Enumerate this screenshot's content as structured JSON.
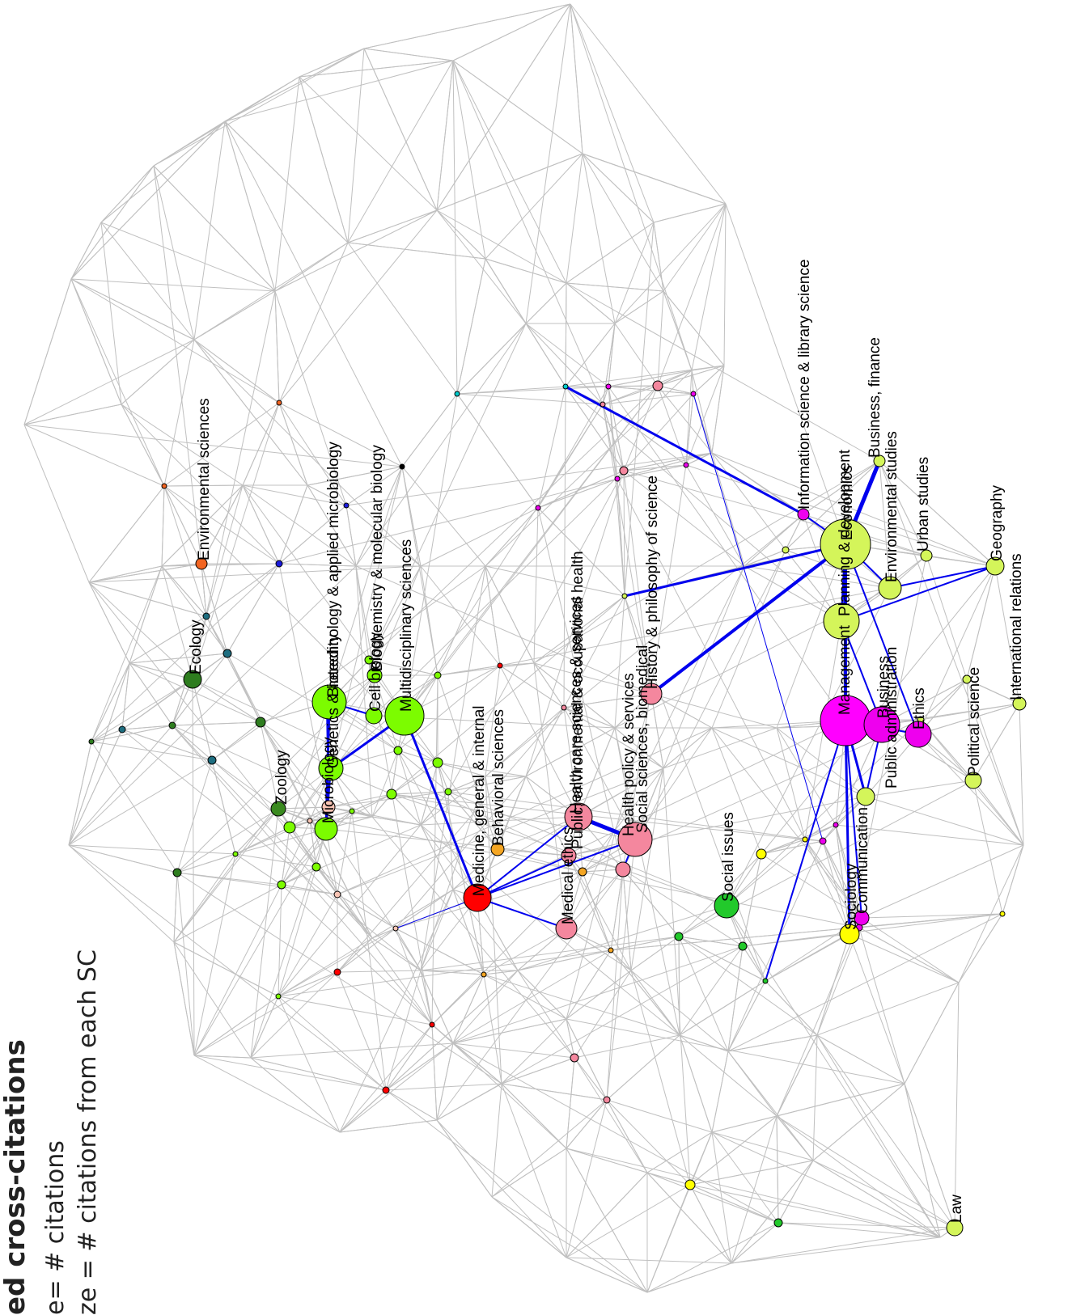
{
  "caption": {
    "title": "ed cross-citations",
    "line1": "e= # citations",
    "line2": "ze = # citations from each SC"
  },
  "colors": {
    "background_edge": "#c0c0c0",
    "highlight_edge": "#0000ee",
    "node_stroke": "#000000"
  },
  "labeled_nodes": [
    {
      "id": "environmental-sciences",
      "label": "Environmental sciences",
      "color": "#f26522"
    },
    {
      "id": "ecology",
      "label": "Ecology",
      "color": "#2e7d1f"
    },
    {
      "id": "zoology",
      "label": "Zoology",
      "color": "#3a8a1f"
    },
    {
      "id": "microbiology",
      "label": "Microbiology",
      "color": "#7cfc00"
    },
    {
      "id": "biotechnology",
      "label": "Biotechnology & applied microbiology",
      "color": "#7cfc00"
    },
    {
      "id": "genetics-heredity",
      "label": "Genetics & heredity",
      "color": "#7cfc00"
    },
    {
      "id": "cell-biology",
      "label": "Cell biology",
      "color": "#7cfc00"
    },
    {
      "id": "biochemistry",
      "label": "Biochemistry & molecular biology",
      "color": "#7cfc00"
    },
    {
      "id": "multidisciplinary-sciences",
      "label": "Multidisciplinary sciences",
      "color": "#7cfc00"
    },
    {
      "id": "medicine-general",
      "label": "Medicine, general & internal",
      "color": "#ff0000"
    },
    {
      "id": "behavioral-sciences",
      "label": "Behavioral sciences",
      "color": "#f5a623"
    },
    {
      "id": "medical-ethics",
      "label": "Medical ethics",
      "color": "#f4879e"
    },
    {
      "id": "health-care",
      "label": "Health care sciences & services",
      "color": "#f4879e"
    },
    {
      "id": "public-health",
      "label": "Public, environmental & occupational health",
      "color": "#f4879e"
    },
    {
      "id": "health-policy",
      "label": "Health policy & services",
      "color": "#f4879e"
    },
    {
      "id": "social-sciences-biomedical",
      "label": "Social sciences, biomedical",
      "color": "#f4879e"
    },
    {
      "id": "history-philosophy",
      "label": "History & philosophy of science",
      "color": "#f4879e"
    },
    {
      "id": "social-issues",
      "label": "Social issues",
      "color": "#22c92b"
    },
    {
      "id": "information-science",
      "label": "Information science & library science",
      "color": "#ee00ee"
    },
    {
      "id": "economics",
      "label": "Economics",
      "color": "#d4f55a"
    },
    {
      "id": "planning-development",
      "label": "Planning & development",
      "color": "#d4f55a"
    },
    {
      "id": "business-finance",
      "label": "Business, finance",
      "color": "#d4f55a"
    },
    {
      "id": "environmental-studies",
      "label": "Environmental studies",
      "color": "#d4f55a"
    },
    {
      "id": "urban-studies",
      "label": "Urban studies",
      "color": "#d4f55a"
    },
    {
      "id": "geography",
      "label": "Geography",
      "color": "#d4f55a"
    },
    {
      "id": "international-relations",
      "label": "International relations",
      "color": "#d4f55a"
    },
    {
      "id": "management",
      "label": "Management",
      "color": "#ff00ff"
    },
    {
      "id": "business",
      "label": "Business",
      "color": "#ee00ee"
    },
    {
      "id": "public-administration",
      "label": "Public administration",
      "color": "#d4f55a"
    },
    {
      "id": "ethics",
      "label": "Ethics",
      "color": "#ee00ee"
    },
    {
      "id": "political-science",
      "label": "Political science",
      "color": "#d4f55a"
    },
    {
      "id": "communication",
      "label": "Communication",
      "color": "#ee00ee"
    },
    {
      "id": "sociology",
      "label": "Sociology",
      "color": "#ffff00"
    },
    {
      "id": "law",
      "label": "Law",
      "color": "#d4f55a"
    }
  ],
  "unlabeled_node_colors": [
    "#f26522",
    "#1a1adb",
    "#1e6e80",
    "#2e7d1f",
    "#7cfc00",
    "#f9c4b4",
    "#ff0000",
    "#f5a623",
    "#f4879e",
    "#22c92b",
    "#ffff00",
    "#d4f55a",
    "#ee00ee",
    "#000000",
    "#00cccc"
  ]
}
